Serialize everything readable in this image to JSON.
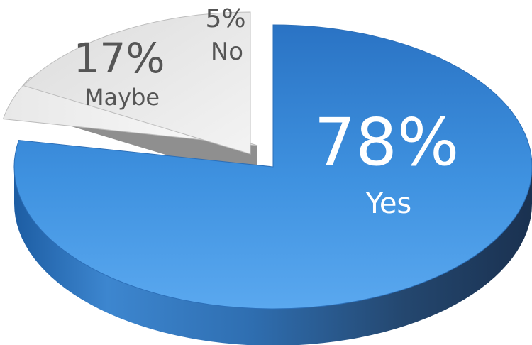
{
  "chart_data": {
    "type": "pie",
    "categories": [
      "Yes",
      "No",
      "Maybe"
    ],
    "values": [
      78,
      5,
      17
    ],
    "labels": [
      "78%",
      "5%",
      "17%"
    ],
    "colors": [
      "#3f8fdc",
      "#f2f2f2",
      "#e0e0e0"
    ],
    "exploded": [
      "Yes",
      "No",
      "Maybe"
    ],
    "legend": "none"
  }
}
